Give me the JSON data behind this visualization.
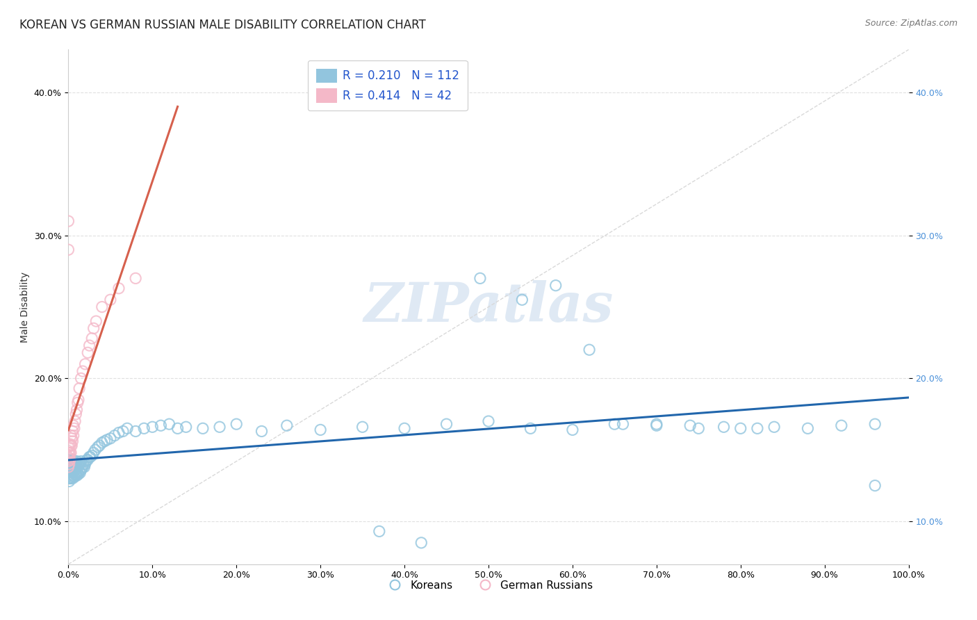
{
  "title": "KOREAN VS GERMAN RUSSIAN MALE DISABILITY CORRELATION CHART",
  "source_text": "Source: ZipAtlas.com",
  "ylabel": "Male Disability",
  "xlim": [
    0.0,
    1.0
  ],
  "ylim": [
    0.07,
    0.43
  ],
  "x_ticks": [
    0.0,
    0.1,
    0.2,
    0.3,
    0.4,
    0.5,
    0.6,
    0.7,
    0.8,
    0.9,
    1.0
  ],
  "x_tick_labels": [
    "0.0%",
    "10.0%",
    "20.0%",
    "30.0%",
    "40.0%",
    "50.0%",
    "60.0%",
    "70.0%",
    "80.0%",
    "90.0%",
    "100.0%"
  ],
  "y_ticks": [
    0.1,
    0.2,
    0.3,
    0.4
  ],
  "y_tick_labels": [
    "10.0%",
    "20.0%",
    "30.0%",
    "40.0%"
  ],
  "korean_color": "#92c5de",
  "german_color": "#f4b8c8",
  "korean_line_color": "#2166ac",
  "german_line_color": "#d6604d",
  "diagonal_color": "#d9d9d9",
  "R_korean": 0.21,
  "N_korean": 112,
  "R_german": 0.414,
  "N_german": 42,
  "legend_label_korean": "Koreans",
  "legend_label_german": "German Russians",
  "watermark": "ZIPatlas",
  "korean_x": [
    0.0,
    0.0,
    0.0,
    0.0,
    0.0,
    0.001,
    0.001,
    0.001,
    0.001,
    0.001,
    0.002,
    0.002,
    0.002,
    0.002,
    0.002,
    0.002,
    0.003,
    0.003,
    0.003,
    0.003,
    0.004,
    0.004,
    0.004,
    0.005,
    0.005,
    0.005,
    0.005,
    0.006,
    0.006,
    0.006,
    0.007,
    0.007,
    0.007,
    0.008,
    0.008,
    0.009,
    0.009,
    0.01,
    0.01,
    0.01,
    0.011,
    0.011,
    0.012,
    0.012,
    0.013,
    0.013,
    0.014,
    0.014,
    0.015,
    0.015,
    0.016,
    0.017,
    0.018,
    0.019,
    0.02,
    0.021,
    0.022,
    0.023,
    0.025,
    0.026,
    0.028,
    0.03,
    0.032,
    0.035,
    0.037,
    0.04,
    0.043,
    0.046,
    0.05,
    0.055,
    0.06,
    0.065,
    0.07,
    0.08,
    0.09,
    0.1,
    0.11,
    0.12,
    0.13,
    0.14,
    0.16,
    0.18,
    0.2,
    0.23,
    0.26,
    0.3,
    0.35,
    0.4,
    0.45,
    0.5,
    0.55,
    0.6,
    0.65,
    0.7,
    0.75,
    0.8,
    0.84,
    0.88,
    0.92,
    0.96,
    0.37,
    0.42,
    0.49,
    0.54,
    0.58,
    0.62,
    0.66,
    0.7,
    0.74,
    0.78,
    0.82,
    0.96
  ],
  "korean_y": [
    0.13,
    0.135,
    0.138,
    0.14,
    0.142,
    0.128,
    0.132,
    0.135,
    0.138,
    0.142,
    0.13,
    0.133,
    0.136,
    0.138,
    0.14,
    0.143,
    0.13,
    0.134,
    0.137,
    0.142,
    0.131,
    0.135,
    0.14,
    0.13,
    0.134,
    0.137,
    0.143,
    0.132,
    0.136,
    0.141,
    0.131,
    0.135,
    0.141,
    0.133,
    0.138,
    0.133,
    0.14,
    0.132,
    0.137,
    0.142,
    0.134,
    0.14,
    0.133,
    0.139,
    0.135,
    0.141,
    0.134,
    0.14,
    0.136,
    0.142,
    0.137,
    0.138,
    0.14,
    0.138,
    0.14,
    0.142,
    0.143,
    0.143,
    0.145,
    0.145,
    0.146,
    0.148,
    0.15,
    0.152,
    0.153,
    0.155,
    0.156,
    0.157,
    0.158,
    0.16,
    0.162,
    0.163,
    0.165,
    0.163,
    0.165,
    0.166,
    0.167,
    0.168,
    0.165,
    0.166,
    0.165,
    0.166,
    0.168,
    0.163,
    0.167,
    0.164,
    0.166,
    0.165,
    0.168,
    0.17,
    0.165,
    0.164,
    0.168,
    0.167,
    0.165,
    0.165,
    0.166,
    0.165,
    0.167,
    0.168,
    0.093,
    0.085,
    0.27,
    0.255,
    0.265,
    0.22,
    0.168,
    0.168,
    0.167,
    0.166,
    0.165,
    0.125
  ],
  "german_x": [
    0.0,
    0.0,
    0.0,
    0.0,
    0.0,
    0.001,
    0.001,
    0.001,
    0.001,
    0.002,
    0.002,
    0.002,
    0.003,
    0.003,
    0.003,
    0.004,
    0.004,
    0.005,
    0.005,
    0.006,
    0.006,
    0.007,
    0.008,
    0.009,
    0.01,
    0.011,
    0.012,
    0.013,
    0.015,
    0.017,
    0.02,
    0.023,
    0.025,
    0.028,
    0.03,
    0.033,
    0.04,
    0.05,
    0.06,
    0.08,
    0.0,
    0.0
  ],
  "german_y": [
    0.138,
    0.142,
    0.145,
    0.148,
    0.152,
    0.14,
    0.144,
    0.148,
    0.153,
    0.143,
    0.148,
    0.154,
    0.148,
    0.153,
    0.16,
    0.153,
    0.158,
    0.156,
    0.163,
    0.16,
    0.167,
    0.165,
    0.17,
    0.175,
    0.178,
    0.183,
    0.185,
    0.193,
    0.2,
    0.205,
    0.21,
    0.218,
    0.223,
    0.228,
    0.235,
    0.24,
    0.25,
    0.255,
    0.263,
    0.27,
    0.29,
    0.31
  ],
  "background_color": "#ffffff",
  "grid_color": "#e0e0e0",
  "title_fontsize": 12,
  "label_fontsize": 10,
  "tick_fontsize": 9,
  "legend_fontsize": 12
}
